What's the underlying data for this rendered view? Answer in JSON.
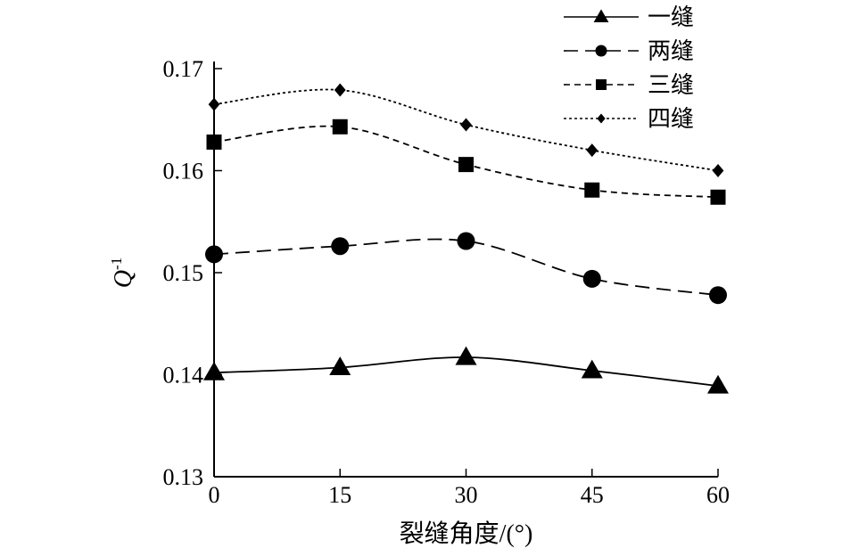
{
  "chart_data": {
    "type": "line",
    "title": "",
    "xlabel": "裂缝角度/(°)",
    "ylabel": "Q",
    "ylabel_sup": "-1",
    "x": [
      0,
      15,
      30,
      45,
      60
    ],
    "xlim": [
      0,
      60
    ],
    "ylim": [
      0.13,
      0.17
    ],
    "x_ticks": [
      0,
      15,
      30,
      45,
      60
    ],
    "x_tick_labels": [
      "0",
      "15",
      "30",
      "45",
      "60"
    ],
    "y_ticks": [
      0.13,
      0.14,
      0.15,
      0.16,
      0.17
    ],
    "y_tick_labels": [
      "0.13",
      "0.14",
      "0.15",
      "0.16",
      "0.17"
    ],
    "grid": false,
    "legend_position": "top-right",
    "series": [
      {
        "name": "一缝",
        "values": [
          0.1402,
          0.1407,
          0.1417,
          0.1404,
          0.1389
        ],
        "line_style": "solid",
        "marker": "triangle"
      },
      {
        "name": "两缝",
        "values": [
          0.1518,
          0.1526,
          0.1531,
          0.1494,
          0.1478
        ],
        "line_style": "long-dash",
        "marker": "circle"
      },
      {
        "name": "三缝",
        "values": [
          0.1628,
          0.1643,
          0.1606,
          0.1581,
          0.1574
        ],
        "line_style": "short-dash",
        "marker": "square"
      },
      {
        "name": "四缝",
        "values": [
          0.1665,
          0.1679,
          0.1645,
          0.162,
          0.16
        ],
        "line_style": "dotted",
        "marker": "diamond"
      }
    ]
  }
}
